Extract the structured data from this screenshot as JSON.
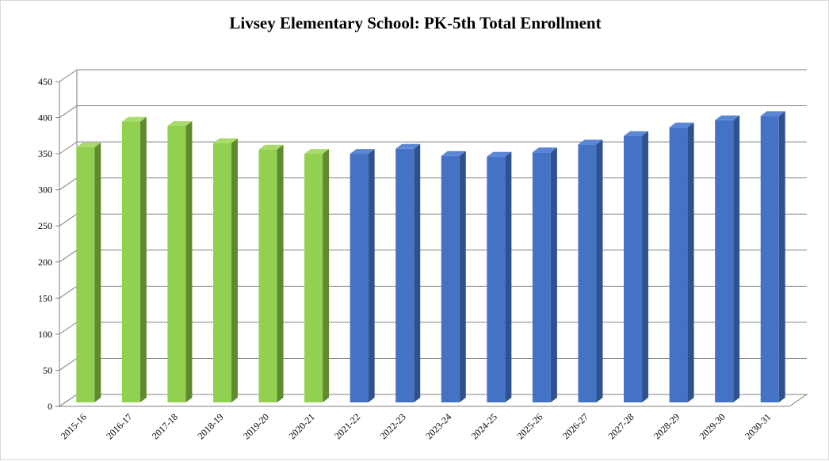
{
  "chart_data": {
    "type": "bar",
    "title": "Livsey Elementary School: PK-5th Total Enrollment",
    "xlabel": "",
    "ylabel": "",
    "ylim": [
      0,
      450
    ],
    "yticks": [
      0,
      50,
      100,
      150,
      200,
      250,
      300,
      350,
      400,
      450
    ],
    "grid": true,
    "legend": "none",
    "categories": [
      "2015-16",
      "2016-17",
      "2017-18",
      "2018-19",
      "2019-20",
      "2020-21",
      "2021-22",
      "2022-23",
      "2023-24",
      "2024-25",
      "2025-26",
      "2026-27",
      "2027-28",
      "2028-29",
      "2029-30",
      "2030-31"
    ],
    "values": [
      360,
      396,
      390,
      366,
      357,
      351,
      351,
      358,
      348,
      347,
      353,
      364,
      376,
      388,
      398,
      404
    ],
    "bar_groups": [
      "actual",
      "actual",
      "actual",
      "actual",
      "actual",
      "actual",
      "projected",
      "projected",
      "projected",
      "projected",
      "projected",
      "projected",
      "projected",
      "projected",
      "projected",
      "projected"
    ],
    "colors": {
      "actual_front": "#92d050",
      "actual_side": "#5f8a2e",
      "actual_top": "#a8dc6a",
      "projected_front": "#4472c4",
      "projected_side": "#2f528f",
      "projected_top": "#5b86d6",
      "grid": "#808080",
      "axis": "#808080"
    }
  }
}
